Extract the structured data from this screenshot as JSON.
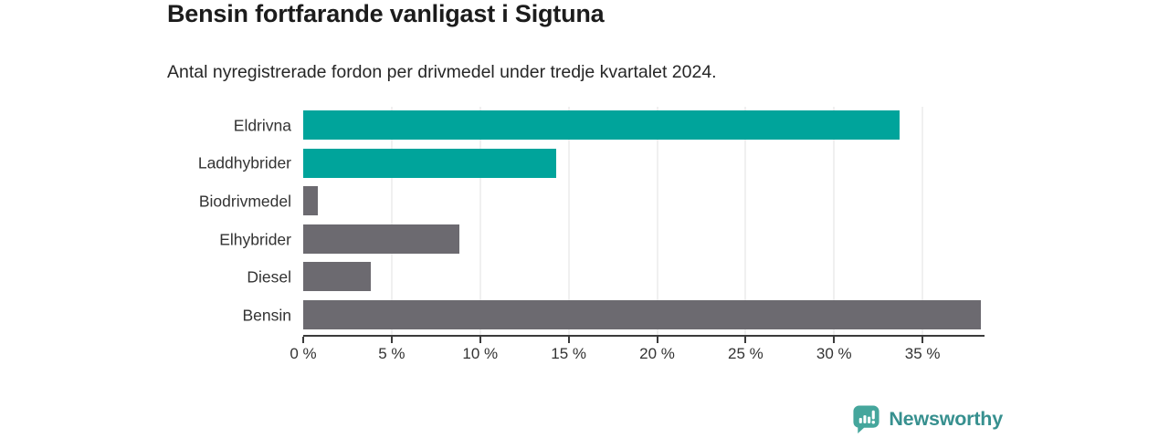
{
  "header": {
    "title": "Bensin fortfarande vanligast i Sigtuna",
    "subtitle": "Antal nyregistrerade fordon per drivmedel under tredje kvartalet 2024."
  },
  "chart_data": {
    "type": "bar",
    "orientation": "horizontal",
    "title": "Bensin fortfarande vanligast i Sigtuna",
    "subtitle": "Antal nyregistrerade fordon per drivmedel under tredje kvartalet 2024.",
    "categories": [
      "Eldrivna",
      "Laddhybrider",
      "Biodrivmedel",
      "Elhybrider",
      "Diesel",
      "Bensin"
    ],
    "values": [
      33.7,
      14.3,
      0.8,
      8.8,
      3.8,
      38.3
    ],
    "unit": "%",
    "bar_colors": [
      "#00a49b",
      "#00a49b",
      "#6c6a70",
      "#6c6a70",
      "#6c6a70",
      "#6c6a70"
    ],
    "x_ticks": [
      {
        "value": 0,
        "label": "0 %"
      },
      {
        "value": 5,
        "label": "5 %"
      },
      {
        "value": 10,
        "label": "10 %"
      },
      {
        "value": 15,
        "label": "15 %"
      },
      {
        "value": 20,
        "label": "20 %"
      },
      {
        "value": 25,
        "label": "25 %"
      },
      {
        "value": 30,
        "label": "30 %"
      },
      {
        "value": 35,
        "label": "35 %"
      }
    ],
    "gridline_values": [
      5,
      10,
      15,
      20,
      25,
      30,
      35
    ],
    "xlim": [
      0,
      38.5
    ],
    "grid": true,
    "legend": "none",
    "colors": {
      "electric_teal": "#00a49b",
      "fossil_gray": "#6c6a70",
      "gridline": "#e2e2e2",
      "axis": "#3b3b3b"
    }
  },
  "branding": {
    "logo_text": "Newsworthy",
    "logo_icon": "newsworthy-speech-bubble-barchart-icon",
    "logo_text_color": "#37908f",
    "logo_icon_color": "#45a69c"
  }
}
